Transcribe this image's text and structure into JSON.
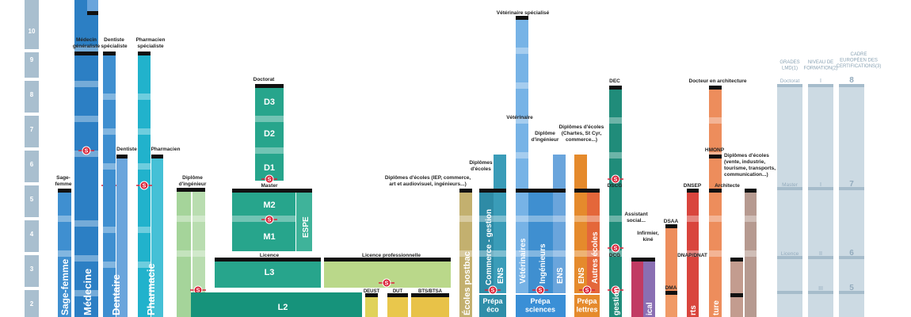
{
  "colors": {
    "axis": "#a9bfcf",
    "blue_dark": "#2c7fc4",
    "blue_mid": "#3f8fd0",
    "blue_light": "#6aa5dc",
    "cyan": "#21b2cc",
    "green_pale": "#a5d49a",
    "teal": "#27a58c",
    "teal_dark": "#16937b",
    "lime": "#bad88a",
    "olive": "#c3b06f",
    "orange": "#e58a2c",
    "orange_red": "#e4673a",
    "red": "#d9453d",
    "salmon": "#ed8d5c",
    "raspberry": "#c13b63",
    "brown_pink": "#c39c8f",
    "grey_blue": "#ccdae3",
    "separator": "#111111",
    "s_marker": "#d9253a"
  },
  "y_axis": [
    "10",
    "9",
    "8",
    "7",
    "6",
    "5",
    "4",
    "3",
    "2"
  ],
  "labels": {
    "medecin_gen": "Médecin\ngénéraliste",
    "dentiste_spec": "Dentiste\nspécialiste",
    "pharmacien_spec": "Pharmacien\nspécialiste",
    "dentiste": "Dentiste",
    "pharmacien": "Pharmacien",
    "sage_femme_top": "Sage-\nfemme",
    "diplome_ingenieur": "Diplôme\nd'ingénieur",
    "doctorat": "Doctorat",
    "master": "Master",
    "licence": "Licence",
    "licence_pro": "Licence professionnelle",
    "deust": "DEUST",
    "dut": "DUT",
    "bts": "BTS/BTSA",
    "veto_spec": "Vétérinaire spécialisé",
    "veterinaire": "Vétérinaire",
    "diplome_ingenieur2": "Diplôme\nd'ingénieur",
    "diplomes_ecoles_chartes": "Diplômes d'écoles\n(Chartes, St Cyr,\ncommerce...)",
    "diplomes_ecoles": "Diplômes\nd'écoles",
    "diplomes_iep": "Diplômes d'écoles (IEP, commerce,\nart et audiovisuel, ingénieurs...)",
    "dec": "DEC",
    "dscg": "DSCG",
    "dcg": "DCG",
    "docteur_archi": "Docteur en architecture",
    "hmonp": "HMONP",
    "diplomes_vente": "Diplômes d'écoles\n(vente, industrie,\ntourisme, transports,\ncommunication...)",
    "assistant_social": "Assistant\nsocial...",
    "infirmier": "Infirmier,\nkiné",
    "dsaa": "DSAA",
    "dnsep": "DNSEP",
    "architecte": "Architecte",
    "dnap": "DNAP/DNAT",
    "dma": "DMA"
  },
  "blocks": {
    "d3": "D3",
    "d2": "D2",
    "d1": "D1",
    "m2": "M2",
    "m1": "M1",
    "espe": "ESPE",
    "l3": "L3",
    "l2": "L2",
    "s_marker": "S"
  },
  "vertical": {
    "sage_femme": "Sage-femme",
    "medecine": "Médecine",
    "dentaire": "Dentaire",
    "pharmacie": "Pharmacie",
    "ecoles_postbac": "Écoles postbac",
    "commerce_gestion": "Commerce - gestion",
    "ens1": "ENS",
    "veterinaires": "Vétérinaires",
    "ingenieurs": "Ingénieurs",
    "ens2": "ENS",
    "ens3": "ENS",
    "autres_ecoles": "Autres écoles",
    "gestion": "gestion",
    "ical": "ical",
    "arts": "rts",
    "ture": "ture"
  },
  "prepa": {
    "eco": "Prépa\néco",
    "sciences": "Prépa\nsciences",
    "lettres": "Prépa\nlettres"
  },
  "panel": {
    "col1": "GRADES\nLMD(1)",
    "col2": "NIVEAU DE\nFORMATION(2)",
    "col3": "CADRE\nEUROPÉEN DES\nCERTIFICATIONS(3)",
    "doctorat": "Doctorat",
    "master": "Master",
    "licence": "Licence",
    "niv_doctorat": "I",
    "niv_master": "I",
    "niv_licence": "II",
    "niv_bottom": "III",
    "cadre_doctorat": "8",
    "cadre_master": "7",
    "cadre_licence": "6",
    "cadre_bottom": "5"
  }
}
